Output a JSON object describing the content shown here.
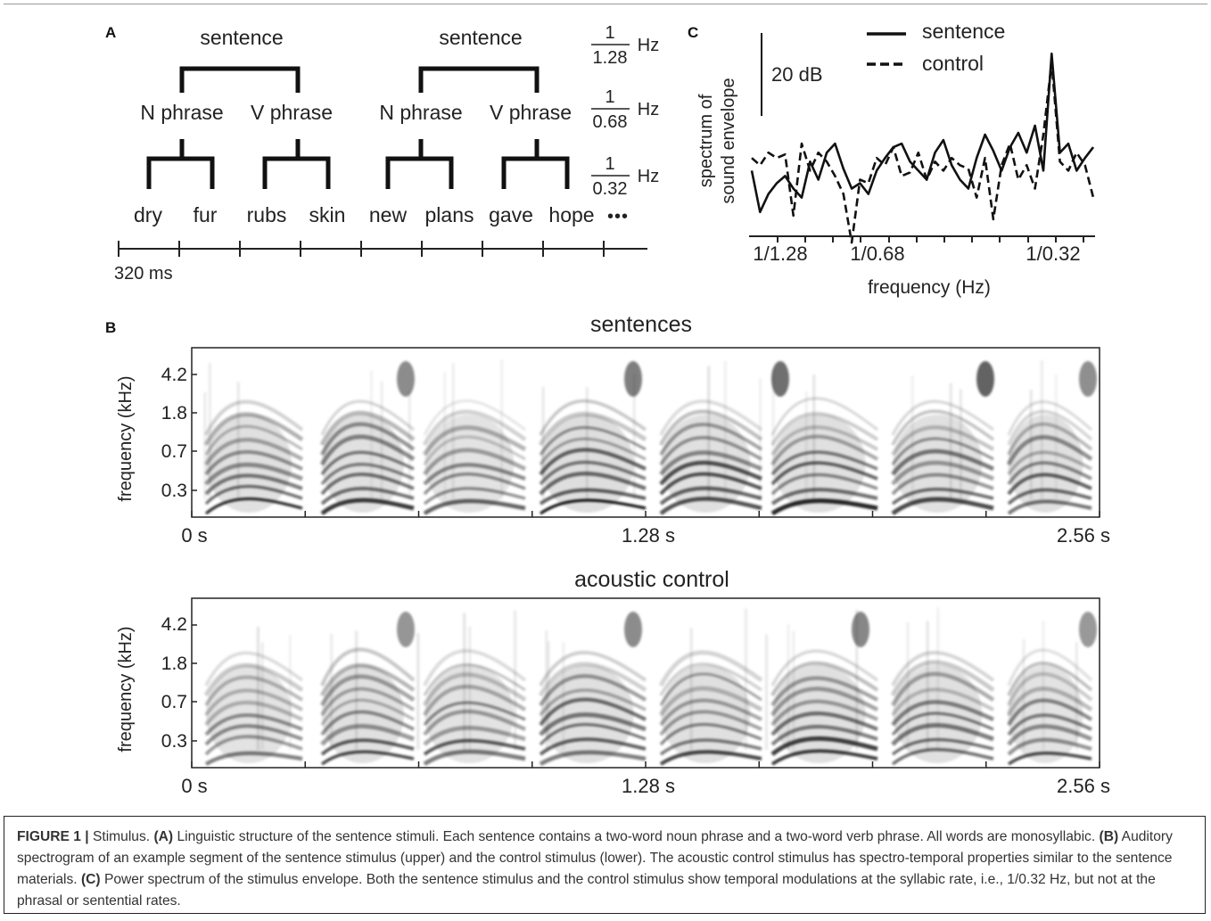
{
  "panel_a": {
    "label": "A",
    "sentence_labels": [
      "sentence",
      "sentence"
    ],
    "phrase_labels": [
      "N phrase",
      "V phrase",
      "N phrase",
      "V phrase"
    ],
    "words": [
      "dry",
      "fur",
      "rubs",
      "skin",
      "new",
      "plans",
      "gave",
      "hope"
    ],
    "ellipsis": "•••",
    "rate_labels": [
      {
        "numerator": "1",
        "denominator": "1.28",
        "unit": "Hz"
      },
      {
        "numerator": "1",
        "denominator": "0.68",
        "unit": "Hz"
      },
      {
        "numerator": "1",
        "denominator": "0.32",
        "unit": "Hz"
      }
    ],
    "timeline_label": "320 ms"
  },
  "panel_c": {
    "label": "C",
    "ylabel_line1": "spectrum of",
    "ylabel_line2": "sound envelope",
    "xlabel": "frequency (Hz)",
    "scale_bar_label": "20 dB",
    "xticks": [
      "1/1.28",
      "1/0.68",
      "1/0.32"
    ],
    "chart_data": {
      "type": "line",
      "xlabel": "frequency (Hz)",
      "ylabel": "spectrum of sound envelope",
      "series": [
        {
          "name": "sentence",
          "values": [
            0.35,
            0.12,
            0.22,
            0.28,
            0.32,
            0.25,
            0.2,
            0.4,
            0.3,
            0.45,
            0.5,
            0.36,
            0.25,
            0.28,
            0.22,
            0.35,
            0.42,
            0.48,
            0.5,
            0.4,
            0.35,
            0.3,
            0.45,
            0.52,
            0.38,
            0.3,
            0.25,
            0.42,
            0.55,
            0.46,
            0.35,
            0.48,
            0.56,
            0.45,
            0.6,
            0.35,
            1.0,
            0.45,
            0.5,
            0.35,
            0.42,
            0.48
          ]
        },
        {
          "name": "control",
          "values": [
            0.42,
            0.38,
            0.45,
            0.42,
            0.44,
            0.1,
            0.5,
            0.35,
            0.45,
            0.4,
            0.32,
            0.22,
            -0.05,
            0.3,
            0.28,
            0.42,
            0.38,
            0.48,
            0.32,
            0.34,
            0.45,
            0.3,
            0.4,
            0.35,
            0.42,
            0.38,
            0.36,
            0.2,
            0.42,
            0.08,
            0.38,
            0.5,
            0.3,
            0.38,
            0.25,
            0.55,
            0.95,
            0.4,
            0.35,
            0.45,
            0.38,
            0.2
          ]
        }
      ]
    }
  },
  "legend": {
    "sentence": "sentence",
    "control": "control"
  },
  "panel_b": {
    "label": "B",
    "titles": [
      "sentences",
      "acoustic control"
    ],
    "ylabel": "frequency (kHz)",
    "yticks": [
      "4.2",
      "1.8",
      "0.7",
      "0.3"
    ],
    "xticks": [
      "0 s",
      "1.28 s",
      "2.56 s"
    ]
  },
  "caption": {
    "fig_label": "FIGURE 1 |",
    "title": "Stimulus.",
    "a_tag": "(A)",
    "a_text": "Linguistic structure of the sentence stimuli. Each sentence contains a two-word noun phrase and a two-word verb phrase. All words are monosyllabic.",
    "b_tag": "(B)",
    "b_text": "Auditory spectrogram of an example segment of the sentence stimulus (upper) and the control stimulus (lower). The acoustic control stimulus has spectro-temporal properties similar to the sentence materials.",
    "c_tag": "(C)",
    "c_text": "Power spectrum of the stimulus envelope. Both the sentence stimulus and the control stimulus show temporal modulations at the syllabic rate, i.e., 1/0.32 Hz, but not at the phrasal or sentential rates."
  }
}
